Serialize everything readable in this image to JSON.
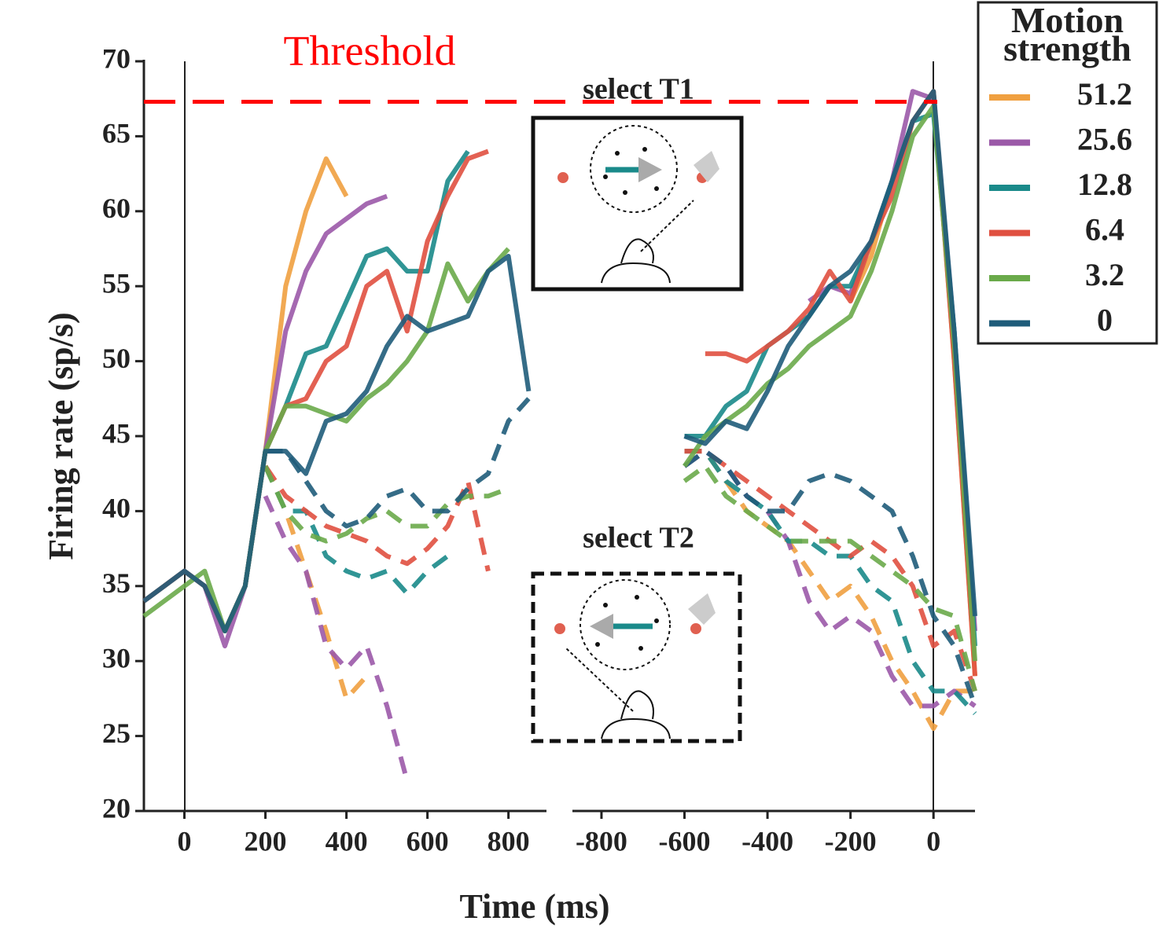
{
  "chart_data": [
    {
      "type": "line",
      "ylabel": "Firing rate (sp/s)",
      "xlabel": "Time (ms)",
      "legend_title": "Motion strength",
      "legend": "upper right",
      "threshold": {
        "value": 67.3,
        "label": "Threshold",
        "color": "#ff0000"
      },
      "annotations": [
        "select T1",
        "select T2"
      ],
      "x": [
        -100,
        -50,
        0,
        50,
        100,
        150,
        200,
        250,
        300,
        350,
        400,
        450,
        500,
        550,
        600,
        650,
        700,
        750,
        800,
        850
      ],
      "xlim": [
        -100,
        890
      ],
      "xticks": [
        0,
        200,
        400,
        600,
        800
      ],
      "ylim": [
        20,
        70
      ],
      "yticks": [
        20,
        25,
        30,
        35,
        40,
        45,
        50,
        55,
        60,
        65,
        70
      ],
      "series": [
        {
          "name": "51.2",
          "color": "#f0a040",
          "values": [
            34,
            35,
            36,
            35,
            32,
            35,
            44,
            55,
            60,
            63.5,
            61,
            null,
            null,
            null,
            null,
            null,
            null,
            null,
            null,
            null
          ],
          "values_dashed": [
            null,
            null,
            null,
            null,
            null,
            null,
            43,
            40,
            36,
            32,
            27.5,
            29,
            null,
            null,
            null,
            null,
            null,
            null,
            null,
            null
          ]
        },
        {
          "name": "25.6",
          "color": "#9b59a8",
          "values": [
            34,
            35,
            36,
            35,
            31,
            35,
            44,
            52,
            56,
            58.5,
            59.5,
            60.5,
            61,
            null,
            null,
            null,
            null,
            null,
            null,
            null
          ],
          "values_dashed": [
            null,
            null,
            null,
            null,
            null,
            null,
            41,
            38,
            36,
            31,
            29.5,
            31,
            27,
            22,
            null,
            null,
            null,
            null,
            null,
            null
          ]
        },
        {
          "name": "12.8",
          "color": "#1a8a8a",
          "values": [
            34,
            35,
            36,
            35,
            32,
            35,
            44,
            47,
            50.5,
            51,
            54,
            57,
            57.5,
            56,
            56,
            62,
            64,
            null,
            null,
            null
          ],
          "values_dashed": [
            null,
            null,
            null,
            null,
            null,
            null,
            43,
            40,
            40,
            37,
            36,
            35.5,
            36,
            34.5,
            36,
            37,
            null,
            null,
            null,
            null
          ]
        },
        {
          "name": "6.4",
          "color": "#e05040",
          "values": [
            34,
            35,
            36,
            35,
            32,
            35,
            44,
            47,
            47.5,
            50,
            51,
            55,
            56,
            52,
            58,
            61,
            63.5,
            64,
            null,
            null
          ],
          "values_dashed": [
            null,
            null,
            null,
            null,
            null,
            null,
            43,
            41,
            40,
            39,
            38.5,
            38,
            37,
            36.5,
            37.5,
            39,
            42,
            36,
            null,
            null
          ]
        },
        {
          "name": "3.2",
          "color": "#6aaa4a",
          "values": [
            33,
            34,
            35,
            36,
            32,
            35,
            44,
            47,
            47,
            46.5,
            46,
            47.5,
            48.5,
            50,
            52,
            56.5,
            54,
            56,
            57.5,
            null
          ],
          "values_dashed": [
            null,
            null,
            null,
            null,
            null,
            null,
            43,
            40,
            38.5,
            38,
            38.5,
            39.5,
            40,
            39,
            39,
            40.5,
            41,
            41,
            41.5,
            null
          ]
        },
        {
          "name": "0",
          "color": "#1f5c7a",
          "values": [
            34,
            35,
            36,
            35,
            32,
            35,
            44,
            44,
            42.5,
            46,
            46.5,
            48,
            51,
            53,
            52,
            52.5,
            53,
            56,
            57,
            48
          ],
          "values_dashed": [
            null,
            null,
            null,
            null,
            null,
            null,
            44,
            44,
            42,
            40,
            39,
            39.5,
            41,
            41.5,
            40,
            40,
            41.5,
            42.5,
            46,
            47.5
          ]
        }
      ]
    },
    {
      "type": "line",
      "x": [
        -600,
        -550,
        -500,
        -450,
        -400,
        -350,
        -300,
        -250,
        -200,
        -150,
        -100,
        -50,
        0,
        50,
        100
      ],
      "xlim": [
        -870,
        100
      ],
      "xticks": [
        -800,
        -600,
        -400,
        -200,
        0
      ],
      "ylim": [
        20,
        70
      ],
      "series": [
        {
          "color": "#f0a040",
          "values": [
            null,
            null,
            null,
            null,
            null,
            null,
            null,
            null,
            54,
            57,
            62,
            66,
            68,
            50,
            29
          ],
          "values_dashed": [
            44,
            44,
            42,
            40,
            39,
            38,
            36,
            34,
            35,
            33,
            30,
            28,
            25.5,
            28,
            28
          ]
        },
        {
          "color": "#9b59a8",
          "values": [
            null,
            null,
            null,
            null,
            null,
            null,
            54,
            55,
            54.5,
            58,
            62,
            68,
            67.5,
            52,
            32
          ],
          "values_dashed": [
            43,
            44,
            43,
            41,
            40,
            38,
            34,
            32,
            33,
            32,
            29,
            27,
            27,
            28,
            27
          ]
        },
        {
          "color": "#1a8a8a",
          "values": [
            45,
            45,
            47,
            48,
            51,
            52,
            53,
            55,
            55,
            58,
            62,
            66,
            66.5,
            52,
            31
          ],
          "values_dashed": [
            44,
            44,
            42,
            41,
            40,
            38,
            38,
            37,
            37,
            35,
            34,
            30,
            28,
            28,
            26.5
          ]
        },
        {
          "color": "#e05040",
          "values": [
            null,
            50.5,
            50.5,
            50,
            51,
            52,
            53.5,
            56,
            54,
            58,
            61,
            66,
            68,
            50,
            29
          ],
          "values_dashed": [
            44,
            44,
            43,
            42,
            41,
            40,
            39,
            38,
            37,
            38,
            37,
            35,
            31,
            32,
            28
          ]
        },
        {
          "color": "#6aaa4a",
          "values": [
            43,
            45,
            46,
            47,
            48.5,
            49.5,
            51,
            52,
            53,
            56,
            60,
            65,
            67,
            51,
            30
          ],
          "values_dashed": [
            42,
            43,
            41,
            40,
            39,
            38,
            38,
            38,
            38,
            37,
            36,
            35,
            33.5,
            33,
            28
          ]
        },
        {
          "color": "#1f5c7a",
          "values": [
            45,
            44.5,
            46,
            45.5,
            48,
            51,
            53,
            55,
            56,
            58,
            62,
            66,
            68,
            52,
            33
          ],
          "values_dashed": [
            43,
            44,
            43,
            41,
            40,
            40,
            42,
            42.5,
            42,
            41,
            40,
            37,
            33,
            31,
            27
          ]
        }
      ]
    }
  ]
}
